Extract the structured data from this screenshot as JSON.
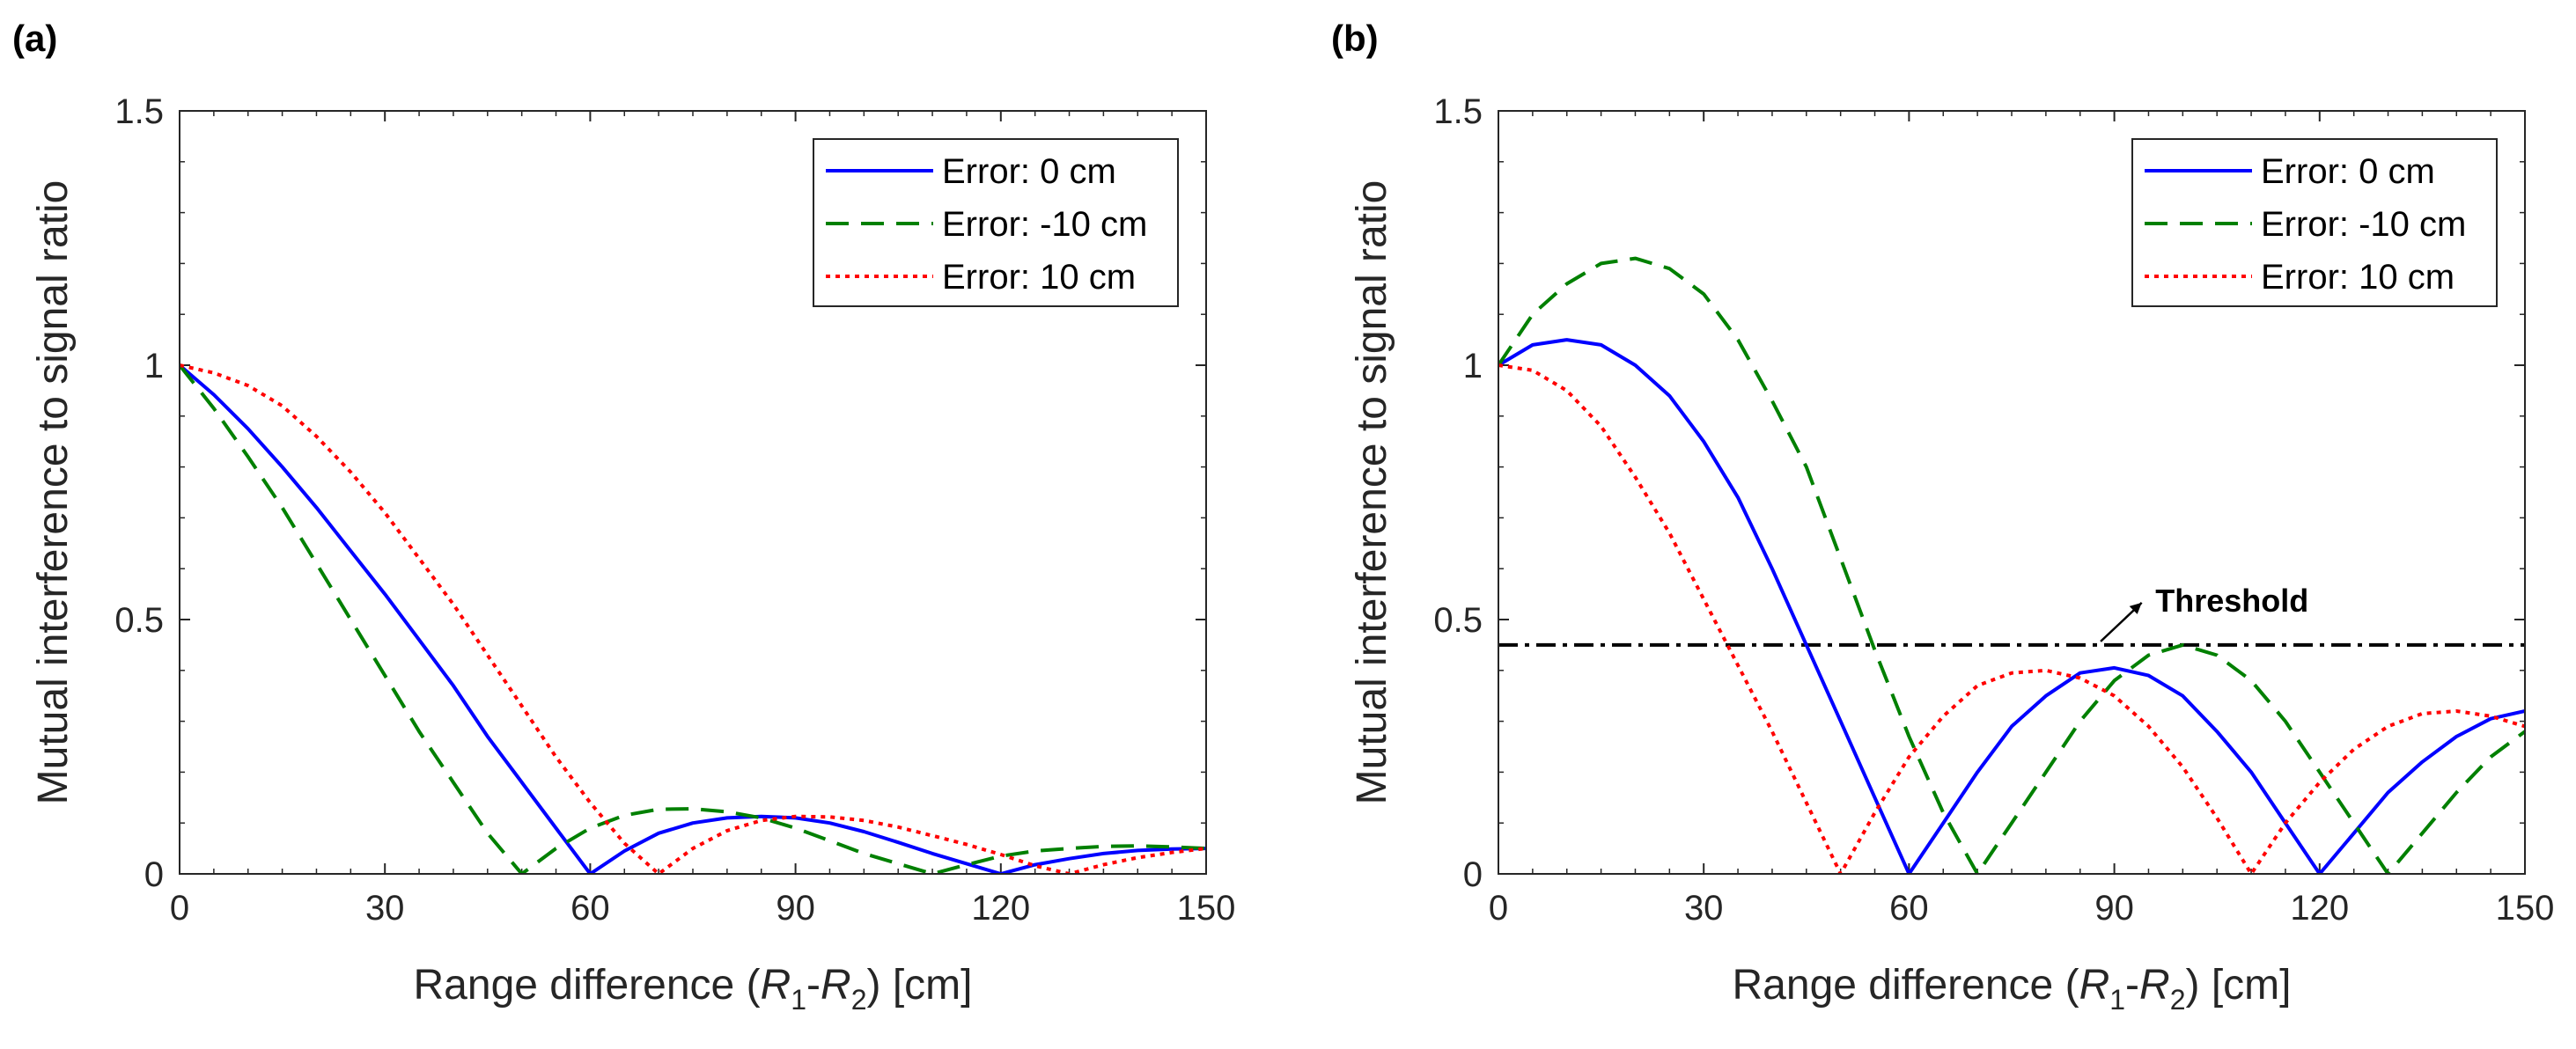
{
  "panel_labels": [
    "(a)",
    "(b)"
  ],
  "chart_data": [
    {
      "type": "line",
      "panel": "(a)",
      "title": "",
      "xlabel": "Range difference",
      "xlabel_suffix": "[cm]",
      "ylabel": "Mutual interference to signal ratio",
      "xlim": [
        0,
        150
      ],
      "ylim": [
        0,
        1.5
      ],
      "xticks": [
        0,
        30,
        60,
        90,
        120,
        150
      ],
      "yticks": [
        0,
        0.5,
        1,
        1.5
      ],
      "xtick_labels": [
        "0",
        "30",
        "60",
        "90",
        "120",
        "150"
      ],
      "ytick_labels": [
        "0",
        "0.5",
        "1",
        "1.5"
      ],
      "legend_position": "top-right",
      "series": [
        {
          "name": "Error: 0 cm",
          "color": "#0000ff",
          "dash": "solid",
          "points": [
            [
              0,
              1
            ],
            [
              5,
              0.942
            ],
            [
              10,
              0.875
            ],
            [
              15,
              0.8
            ],
            [
              20,
              0.72
            ],
            [
              25,
              0.635
            ],
            [
              30,
              0.55
            ],
            [
              35,
              0.46
            ],
            [
              40,
              0.37
            ],
            [
              45,
              0.27
            ],
            [
              50,
              0.18
            ],
            [
              55,
              0.09
            ],
            [
              60,
              0
            ],
            [
              65,
              0.045
            ],
            [
              70,
              0.08
            ],
            [
              75,
              0.1
            ],
            [
              80,
              0.11
            ],
            [
              85,
              0.113
            ],
            [
              90,
              0.11
            ],
            [
              95,
              0.1
            ],
            [
              100,
              0.083
            ],
            [
              105,
              0.062
            ],
            [
              110,
              0.04
            ],
            [
              115,
              0.02
            ],
            [
              120,
              0
            ],
            [
              125,
              0.018
            ],
            [
              130,
              0.03
            ],
            [
              135,
              0.04
            ],
            [
              140,
              0.046
            ],
            [
              145,
              0.049
            ],
            [
              150,
              0.05
            ]
          ]
        },
        {
          "name": "Error: -10 cm",
          "color": "#008000",
          "dash": "dashed",
          "points": [
            [
              0,
              1
            ],
            [
              5,
              0.915
            ],
            [
              10,
              0.82
            ],
            [
              15,
              0.72
            ],
            [
              20,
              0.61
            ],
            [
              25,
              0.5
            ],
            [
              30,
              0.39
            ],
            [
              35,
              0.28
            ],
            [
              40,
              0.18
            ],
            [
              45,
              0.08
            ],
            [
              50,
              0
            ],
            [
              55,
              0.05
            ],
            [
              60,
              0.09
            ],
            [
              65,
              0.115
            ],
            [
              70,
              0.127
            ],
            [
              75,
              0.128
            ],
            [
              80,
              0.122
            ],
            [
              85,
              0.11
            ],
            [
              90,
              0.09
            ],
            [
              95,
              0.065
            ],
            [
              100,
              0.04
            ],
            [
              105,
              0.02
            ],
            [
              110,
              0
            ],
            [
              115,
              0.018
            ],
            [
              120,
              0.035
            ],
            [
              125,
              0.045
            ],
            [
              130,
              0.05
            ],
            [
              135,
              0.054
            ],
            [
              140,
              0.055
            ],
            [
              145,
              0.053
            ],
            [
              150,
              0.05
            ]
          ]
        },
        {
          "name": "Error: 10 cm",
          "color": "#ff0000",
          "dash": "dotted",
          "points": [
            [
              0,
              1
            ],
            [
              5,
              0.985
            ],
            [
              10,
              0.96
            ],
            [
              15,
              0.92
            ],
            [
              20,
              0.86
            ],
            [
              25,
              0.79
            ],
            [
              30,
              0.71
            ],
            [
              35,
              0.62
            ],
            [
              40,
              0.53
            ],
            [
              45,
              0.43
            ],
            [
              50,
              0.33
            ],
            [
              55,
              0.23
            ],
            [
              60,
              0.14
            ],
            [
              65,
              0.06
            ],
            [
              70,
              0
            ],
            [
              75,
              0.05
            ],
            [
              80,
              0.085
            ],
            [
              85,
              0.105
            ],
            [
              90,
              0.113
            ],
            [
              95,
              0.112
            ],
            [
              100,
              0.105
            ],
            [
              105,
              0.092
            ],
            [
              110,
              0.075
            ],
            [
              115,
              0.058
            ],
            [
              120,
              0.038
            ],
            [
              125,
              0.016
            ],
            [
              130,
              0
            ],
            [
              135,
              0.018
            ],
            [
              140,
              0.032
            ],
            [
              145,
              0.042
            ],
            [
              150,
              0.05
            ]
          ]
        }
      ]
    },
    {
      "type": "line",
      "panel": "(b)",
      "title": "",
      "xlabel": "Range difference",
      "xlabel_suffix": "[cm]",
      "ylabel": "Mutual interference to signal ratio",
      "xlim": [
        0,
        150
      ],
      "ylim": [
        0,
        1.5
      ],
      "xticks": [
        0,
        30,
        60,
        90,
        120,
        150
      ],
      "yticks": [
        0,
        0.5,
        1,
        1.5
      ],
      "xtick_labels": [
        "0",
        "30",
        "60",
        "90",
        "120",
        "150"
      ],
      "ytick_labels": [
        "0",
        "0.5",
        "1",
        "1.5"
      ],
      "legend_position": "top-right",
      "threshold": {
        "value": 0.45,
        "label": "Threshold",
        "color": "#000000"
      },
      "series": [
        {
          "name": "Error: 0 cm",
          "color": "#0000ff",
          "dash": "solid",
          "points": [
            [
              0,
              1
            ],
            [
              5,
              1.04
            ],
            [
              10,
              1.05
            ],
            [
              15,
              1.04
            ],
            [
              20,
              1.0
            ],
            [
              25,
              0.94
            ],
            [
              30,
              0.85
            ],
            [
              35,
              0.74
            ],
            [
              40,
              0.6
            ],
            [
              45,
              0.45
            ],
            [
              50,
              0.3
            ],
            [
              55,
              0.15
            ],
            [
              60,
              0
            ],
            [
              65,
              0.1
            ],
            [
              70,
              0.2
            ],
            [
              75,
              0.29
            ],
            [
              80,
              0.35
            ],
            [
              85,
              0.395
            ],
            [
              90,
              0.405
            ],
            [
              95,
              0.39
            ],
            [
              100,
              0.35
            ],
            [
              105,
              0.28
            ],
            [
              110,
              0.2
            ],
            [
              115,
              0.1
            ],
            [
              120,
              0
            ],
            [
              125,
              0.08
            ],
            [
              130,
              0.16
            ],
            [
              135,
              0.22
            ],
            [
              140,
              0.27
            ],
            [
              145,
              0.305
            ],
            [
              150,
              0.32
            ]
          ]
        },
        {
          "name": "Error: -10 cm",
          "color": "#008000",
          "dash": "dashed",
          "points": [
            [
              0,
              1
            ],
            [
              5,
              1.1
            ],
            [
              10,
              1.16
            ],
            [
              15,
              1.2
            ],
            [
              20,
              1.21
            ],
            [
              25,
              1.19
            ],
            [
              30,
              1.14
            ],
            [
              35,
              1.05
            ],
            [
              40,
              0.93
            ],
            [
              45,
              0.8
            ],
            [
              50,
              0.62
            ],
            [
              55,
              0.44
            ],
            [
              60,
              0.27
            ],
            [
              65,
              0.12
            ],
            [
              70,
              0
            ],
            [
              75,
              0.1
            ],
            [
              80,
              0.2
            ],
            [
              85,
              0.3
            ],
            [
              90,
              0.38
            ],
            [
              95,
              0.43
            ],
            [
              100,
              0.45
            ],
            [
              105,
              0.43
            ],
            [
              110,
              0.38
            ],
            [
              115,
              0.3
            ],
            [
              120,
              0.2
            ],
            [
              125,
              0.1
            ],
            [
              130,
              0
            ],
            [
              135,
              0.08
            ],
            [
              140,
              0.16
            ],
            [
              145,
              0.23
            ],
            [
              150,
              0.28
            ]
          ]
        },
        {
          "name": "Error: 10 cm",
          "color": "#ff0000",
          "dash": "dotted",
          "points": [
            [
              0,
              1
            ],
            [
              5,
              0.99
            ],
            [
              10,
              0.95
            ],
            [
              15,
              0.88
            ],
            [
              20,
              0.78
            ],
            [
              25,
              0.67
            ],
            [
              30,
              0.54
            ],
            [
              35,
              0.41
            ],
            [
              40,
              0.28
            ],
            [
              45,
              0.14
            ],
            [
              50,
              0
            ],
            [
              55,
              0.12
            ],
            [
              60,
              0.23
            ],
            [
              65,
              0.31
            ],
            [
              70,
              0.37
            ],
            [
              75,
              0.395
            ],
            [
              80,
              0.4
            ],
            [
              85,
              0.385
            ],
            [
              90,
              0.35
            ],
            [
              95,
              0.29
            ],
            [
              100,
              0.21
            ],
            [
              105,
              0.11
            ],
            [
              110,
              0
            ],
            [
              115,
              0.1
            ],
            [
              120,
              0.18
            ],
            [
              125,
              0.245
            ],
            [
              130,
              0.29
            ],
            [
              135,
              0.315
            ],
            [
              140,
              0.32
            ],
            [
              145,
              0.31
            ],
            [
              150,
              0.29
            ]
          ]
        }
      ]
    }
  ]
}
